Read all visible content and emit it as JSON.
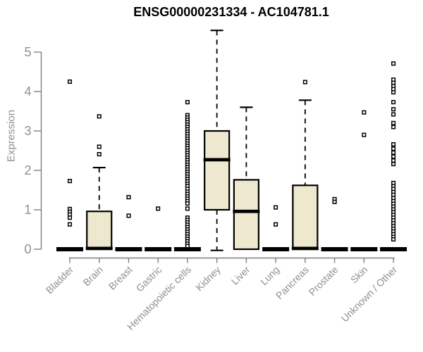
{
  "chart_data": {
    "type": "boxplot",
    "title": "ENSG00000231334 - AC104781.1",
    "ylabel": "Expression",
    "yticks": [
      0,
      1,
      2,
      3,
      4,
      5
    ],
    "ylim": [
      0,
      5.6
    ],
    "grid": false,
    "legend": null,
    "box_fill": "#EDE8CE",
    "box_stroke": "#000000",
    "axis_color": "#7F7F7F",
    "label_color": "#8F8F8F",
    "categories": [
      "Bladder",
      "Brain",
      "Breast",
      "Gastric",
      "Hematopoietic cells",
      "Kidney",
      "Liver",
      "Lung",
      "Pancreas",
      "Prostate",
      "Skin",
      "Unknown / Other"
    ],
    "boxes": [
      {
        "category": "Bladder",
        "q1": 0,
        "median": 0,
        "q3": 0,
        "whisker_low": 0,
        "whisker_high": 0,
        "outliers": [
          4.25,
          1.73,
          1.02,
          0.95,
          0.88,
          0.8,
          0.63
        ]
      },
      {
        "category": "Brain",
        "q1": 0,
        "median": 0.02,
        "q3": 0.96,
        "whisker_low": 0,
        "whisker_high": 2.07,
        "outliers": [
          3.37,
          2.6,
          2.41
        ]
      },
      {
        "category": "Breast",
        "q1": 0,
        "median": 0,
        "q3": 0,
        "whisker_low": 0,
        "whisker_high": 0,
        "outliers": [
          1.32,
          0.85
        ]
      },
      {
        "category": "Gastric",
        "q1": 0,
        "median": 0,
        "q3": 0,
        "whisker_low": 0,
        "whisker_high": 0,
        "outliers": [
          1.03
        ]
      },
      {
        "category": "Hematopoietic cells",
        "q1": 0,
        "median": 0,
        "q3": 0,
        "whisker_low": 0,
        "whisker_high": 0,
        "outliers": [
          3.73,
          3.4,
          3.34,
          3.28,
          3.22,
          3.16,
          3.1,
          3.04,
          2.98,
          2.92,
          2.86,
          2.8,
          2.74,
          2.68,
          2.62,
          2.56,
          2.5,
          2.44,
          2.38,
          2.32,
          2.26,
          2.2,
          2.14,
          2.08,
          2.02,
          1.96,
          1.9,
          1.84,
          1.78,
          1.72,
          1.66,
          1.6,
          1.53,
          1.46,
          1.4,
          1.34,
          1.28,
          1.22,
          1.16,
          1.03,
          0.8,
          0.74,
          0.68,
          0.62,
          0.56,
          0.5,
          0.44,
          0.38,
          0.32,
          0.26,
          0.2,
          0.14,
          0.08
        ]
      },
      {
        "category": "Kidney",
        "q1": 1.0,
        "median": 2.27,
        "q3": 3.0,
        "whisker_low": -0.03,
        "whisker_high": 5.55,
        "outliers": []
      },
      {
        "category": "Liver",
        "q1": 0,
        "median": 0.96,
        "q3": 1.76,
        "whisker_low": 0,
        "whisker_high": 3.6,
        "outliers": []
      },
      {
        "category": "Lung",
        "q1": 0,
        "median": 0,
        "q3": 0,
        "whisker_low": 0,
        "whisker_high": 0,
        "outliers": [
          1.06,
          0.63
        ]
      },
      {
        "category": "Pancreas",
        "q1": 0,
        "median": 0.02,
        "q3": 1.62,
        "whisker_low": 0,
        "whisker_high": 3.78,
        "outliers": [
          4.24
        ]
      },
      {
        "category": "Prostate",
        "q1": 0,
        "median": 0,
        "q3": 0,
        "whisker_low": 0,
        "whisker_high": 0,
        "outliers": [
          1.27,
          1.2
        ]
      },
      {
        "category": "Skin",
        "q1": 0,
        "median": 0,
        "q3": 0,
        "whisker_low": 0,
        "whisker_high": 0,
        "outliers": [
          3.47,
          2.9
        ]
      },
      {
        "category": "Unknown / Other",
        "q1": 0,
        "median": 0,
        "q3": 0,
        "whisker_low": 0,
        "whisker_high": 0,
        "outliers": [
          4.71,
          4.3,
          4.22,
          4.14,
          4.06,
          3.98,
          3.73,
          3.55,
          3.42,
          3.2,
          3.1,
          2.66,
          2.55,
          2.45,
          2.35,
          2.25,
          2.16,
          1.68,
          1.6,
          1.53,
          1.45,
          1.38,
          1.3,
          1.22,
          1.15,
          1.08,
          1.01,
          0.94,
          0.87,
          0.8,
          0.73,
          0.66,
          0.59,
          0.52,
          0.45,
          0.38,
          0.31,
          0.25
        ]
      }
    ]
  }
}
